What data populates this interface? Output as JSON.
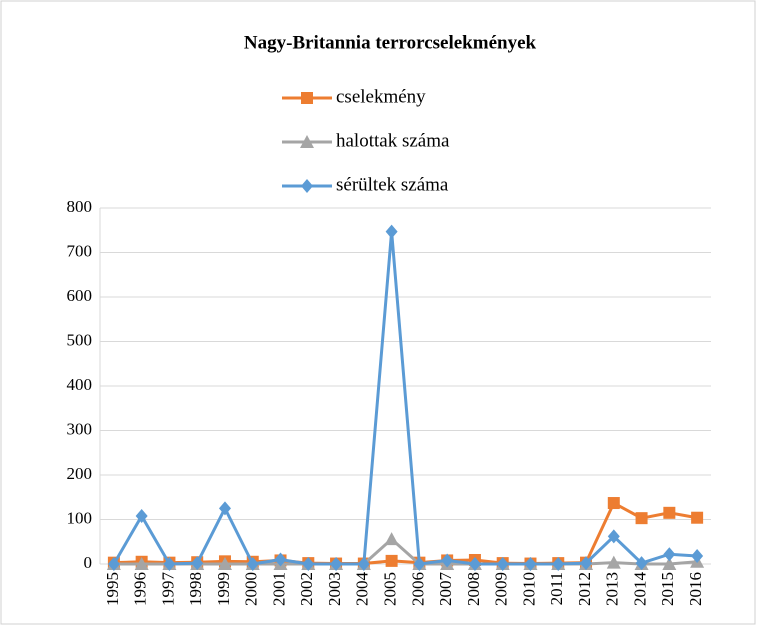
{
  "chart_data": {
    "type": "line",
    "title": "Nagy-Britannia terrorcselekmények",
    "categories": [
      "1995",
      "1996",
      "1997",
      "1998",
      "1999",
      "2000",
      "2001",
      "2002",
      "2003",
      "2004",
      "2005",
      "2006",
      "2007",
      "2008",
      "2009",
      "2010",
      "2011",
      "2012",
      "2013",
      "2014",
      "2015",
      "2016"
    ],
    "series": [
      {
        "name": "cselekmény",
        "color": "#ed7d31",
        "marker": "square",
        "values": [
          3,
          5,
          3,
          4,
          6,
          5,
          8,
          2,
          1,
          1,
          7,
          3,
          8,
          9,
          2,
          1,
          2,
          3,
          137,
          103,
          115,
          104
        ]
      },
      {
        "name": "halottak száma",
        "color": "#a5a5a5",
        "marker": "triangle",
        "values": [
          0,
          0,
          0,
          0,
          0,
          0,
          0,
          0,
          0,
          0,
          56,
          0,
          0,
          0,
          0,
          0,
          0,
          0,
          3,
          0,
          0,
          5
        ]
      },
      {
        "name": "sérültek száma",
        "color": "#5b9bd5",
        "marker": "diamond",
        "values": [
          0,
          108,
          0,
          2,
          125,
          0,
          10,
          0,
          0,
          0,
          747,
          0,
          8,
          0,
          0,
          0,
          0,
          2,
          62,
          2,
          22,
          18
        ]
      }
    ],
    "ylim": [
      0,
      800
    ],
    "yticks": [
      0,
      100,
      200,
      300,
      400,
      500,
      600,
      700,
      800
    ],
    "grid": true
  }
}
